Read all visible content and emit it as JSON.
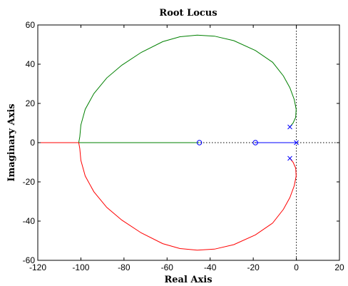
{
  "chart_data": {
    "type": "line",
    "title": "Root Locus",
    "xlabel": "Real Axis",
    "ylabel": "Imaginary Axis",
    "xlim": [
      -120,
      20
    ],
    "ylim": [
      -60,
      60
    ],
    "xticks": [
      -120,
      -100,
      -80,
      -60,
      -40,
      -20,
      0,
      20
    ],
    "yticks": [
      -60,
      -40,
      -20,
      0,
      20,
      40,
      60
    ],
    "xtick_labels": [
      "-120",
      "-100",
      "-80",
      "-60",
      "-40",
      "-20",
      "0",
      "20"
    ],
    "ytick_labels": [
      "-60",
      "-40",
      "-20",
      "0",
      "20",
      "40",
      "60"
    ],
    "grid": false,
    "series": [
      {
        "color": "#008000",
        "points": [
          [
            -3,
            8
          ],
          [
            -1.5,
            10
          ],
          [
            -0.3,
            13
          ],
          [
            -0.1,
            17
          ],
          [
            -1,
            22
          ],
          [
            -3,
            28
          ],
          [
            -6,
            34
          ],
          [
            -11,
            41
          ],
          [
            -19,
            47
          ],
          [
            -29,
            52
          ],
          [
            -38,
            54.3
          ],
          [
            -46,
            54.8
          ],
          [
            -54,
            54
          ],
          [
            -62,
            51.5
          ],
          [
            -72,
            46
          ],
          [
            -81,
            39.5
          ],
          [
            -88,
            33
          ],
          [
            -94,
            25
          ],
          [
            -98,
            17
          ],
          [
            -100,
            9
          ],
          [
            -100.5,
            3
          ],
          [
            -101,
            0
          ],
          [
            -80,
            0
          ],
          [
            -60,
            0
          ],
          [
            -45,
            0
          ]
        ]
      },
      {
        "color": "#ff0000",
        "points": [
          [
            -3,
            -8
          ],
          [
            -1.5,
            -10
          ],
          [
            -0.3,
            -13
          ],
          [
            -0.1,
            -17
          ],
          [
            -1,
            -22
          ],
          [
            -3,
            -28
          ],
          [
            -6,
            -34
          ],
          [
            -11,
            -41
          ],
          [
            -19,
            -47
          ],
          [
            -29,
            -52
          ],
          [
            -38,
            -54.3
          ],
          [
            -46,
            -54.8
          ],
          [
            -54,
            -54
          ],
          [
            -62,
            -51.5
          ],
          [
            -72,
            -46
          ],
          [
            -81,
            -39.5
          ],
          [
            -88,
            -33
          ],
          [
            -94,
            -25
          ],
          [
            -98,
            -17
          ],
          [
            -100,
            -9
          ],
          [
            -100.5,
            -3
          ],
          [
            -101,
            0
          ],
          [
            -110,
            0
          ],
          [
            -120,
            0
          ]
        ]
      },
      {
        "color": "#0000ff",
        "points": [
          [
            0,
            0
          ],
          [
            -10,
            0
          ],
          [
            -19,
            0
          ]
        ]
      }
    ],
    "poles": [
      [
        0,
        0
      ],
      [
        -3,
        8
      ],
      [
        -3,
        -8
      ]
    ],
    "zeros": [
      [
        -19,
        0
      ],
      [
        -45,
        0
      ]
    ],
    "reference_lines": {
      "real_axis": true,
      "imaginary_axis": true,
      "style": "dotted"
    },
    "marker_color": "#0000ff",
    "box_color": "#000000"
  }
}
